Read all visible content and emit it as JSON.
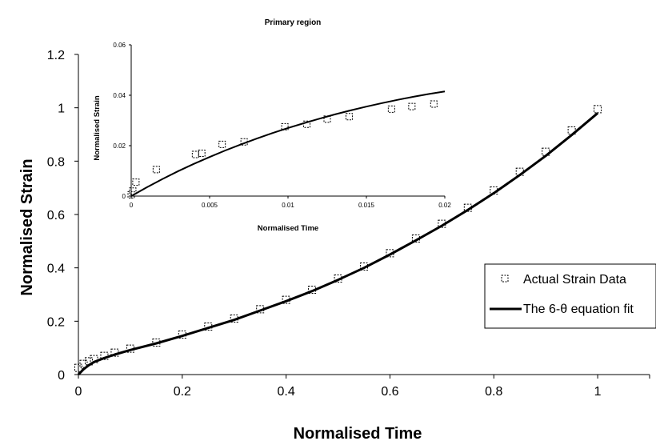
{
  "chart_data": [
    {
      "type": "scatter",
      "title": "",
      "xlabel": "Normalised Time",
      "ylabel": "Normalised Strain",
      "xlim": [
        0,
        1.1
      ],
      "ylim": [
        0,
        1.2
      ],
      "xticks": [
        "0",
        "0.2",
        "0.4",
        "0.6",
        "0.8",
        "1"
      ],
      "yticks": [
        "0",
        "0.2",
        "0.4",
        "0.6",
        "0.8",
        "1",
        "1.2"
      ],
      "grid": false,
      "legend_position": "right",
      "series": [
        {
          "name": "Actual Strain Data",
          "kind": "markers",
          "marker": "square-open",
          "x": [
            0,
            0.01,
            0.02,
            0.03,
            0.05,
            0.07,
            0.1,
            0.15,
            0.2,
            0.25,
            0.3,
            0.35,
            0.4,
            0.45,
            0.5,
            0.55,
            0.6,
            0.65,
            0.7,
            0.75,
            0.8,
            0.85,
            0.9,
            0.95,
            1.0
          ],
          "y": [
            0.025,
            0.04,
            0.05,
            0.058,
            0.07,
            0.082,
            0.097,
            0.12,
            0.15,
            0.18,
            0.21,
            0.245,
            0.28,
            0.318,
            0.36,
            0.405,
            0.455,
            0.51,
            0.565,
            0.625,
            0.69,
            0.76,
            0.835,
            0.915,
            0.995
          ]
        },
        {
          "name": "The 6-θ equation fit",
          "kind": "line",
          "x": [
            0,
            0.01,
            0.02,
            0.03,
            0.05,
            0.07,
            0.1,
            0.15,
            0.2,
            0.25,
            0.3,
            0.35,
            0.4,
            0.45,
            0.5,
            0.55,
            0.6,
            0.65,
            0.7,
            0.75,
            0.8,
            0.85,
            0.9,
            0.95,
            1.0
          ],
          "y": [
            0.0,
            0.02,
            0.035,
            0.047,
            0.062,
            0.075,
            0.092,
            0.117,
            0.145,
            0.175,
            0.205,
            0.24,
            0.275,
            0.313,
            0.355,
            0.4,
            0.45,
            0.503,
            0.558,
            0.617,
            0.68,
            0.748,
            0.82,
            0.898,
            0.98
          ]
        }
      ]
    },
    {
      "type": "scatter",
      "title": "Primary region",
      "xlabel": "Normalised Time",
      "ylabel": "Normalised Strain",
      "xlim": [
        0,
        0.02
      ],
      "ylim": [
        0,
        0.06
      ],
      "xticks": [
        "0",
        "0.005",
        "0.01",
        "0.015",
        "0.02"
      ],
      "yticks": [
        "0",
        "0.02",
        "0.04",
        "0.06"
      ],
      "grid": false,
      "series": [
        {
          "name": "Actual Strain Data",
          "kind": "markers",
          "marker": "square-open",
          "x": [
            0,
            0.0001,
            0.0003,
            0.0016,
            0.0041,
            0.0045,
            0.0058,
            0.0072,
            0.0098,
            0.0112,
            0.0125,
            0.0139,
            0.0166,
            0.0179,
            0.0193
          ],
          "y": [
            0.0005,
            0.002,
            0.0055,
            0.0105,
            0.0165,
            0.017,
            0.0205,
            0.0215,
            0.0275,
            0.0285,
            0.0305,
            0.0315,
            0.0345,
            0.0355,
            0.0365
          ]
        },
        {
          "name": "The 6-θ equation fit",
          "kind": "line",
          "x": [
            0,
            0.001,
            0.002,
            0.003,
            0.004,
            0.005,
            0.006,
            0.007,
            0.008,
            0.009,
            0.01,
            0.011,
            0.012,
            0.013,
            0.014,
            0.015,
            0.016,
            0.017,
            0.018,
            0.019,
            0.02
          ],
          "y": [
            0.0,
            0.0035,
            0.0068,
            0.0099,
            0.0128,
            0.0155,
            0.0181,
            0.0205,
            0.0228,
            0.025,
            0.027,
            0.0289,
            0.0307,
            0.0324,
            0.034,
            0.0355,
            0.0369,
            0.0382,
            0.0394,
            0.0405,
            0.0415
          ]
        }
      ]
    }
  ],
  "colors": {
    "marker": "#000000",
    "line": "#000000",
    "background": "#ffffff"
  }
}
